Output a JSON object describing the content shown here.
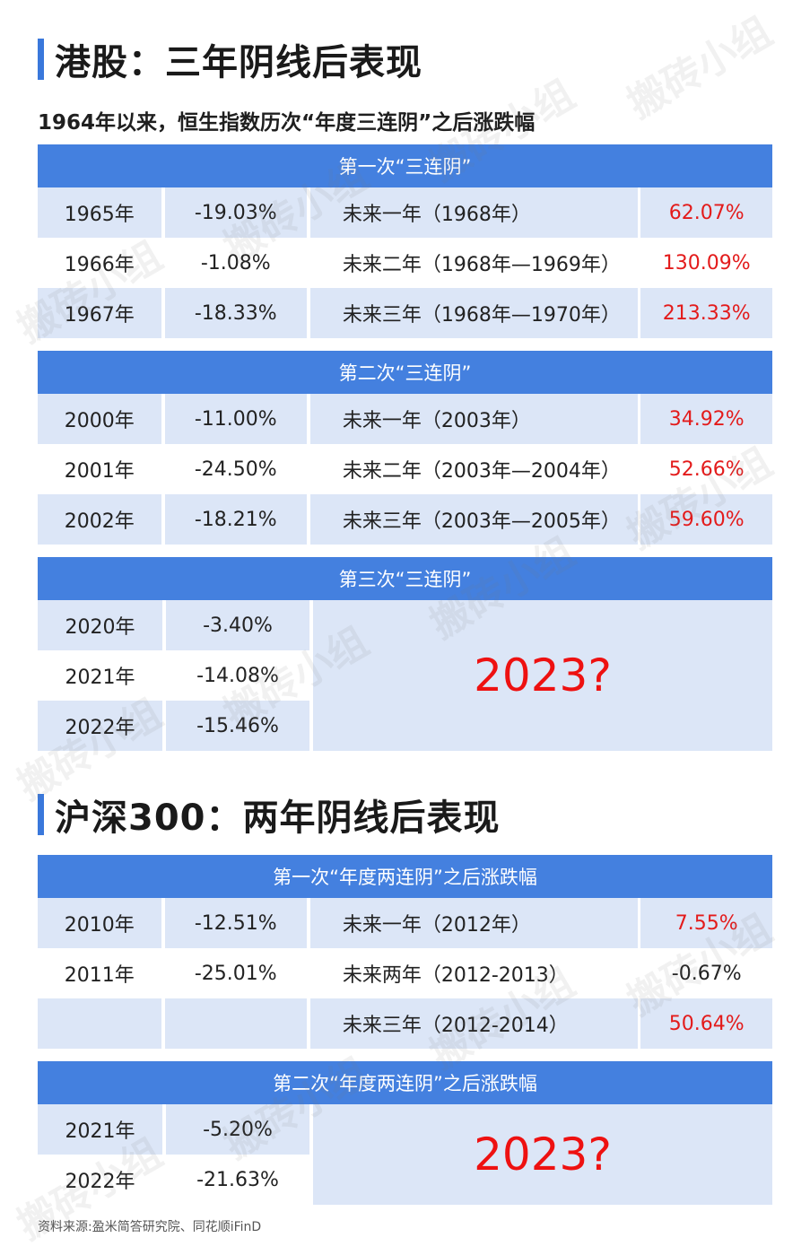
{
  "hk_title": "港股：三年阴线后表现",
  "hk_subtitle": "1964年以来，恒生指数历次“年度三连阴”之后涨跌幅",
  "hk_blocks": [
    {
      "header": "第一次“三连阴”",
      "rows": [
        {
          "year": "1965年",
          "change": "-19.03%",
          "period": "未来一年（1968年）",
          "result": "62.07%"
        },
        {
          "year": "1966年",
          "change": "-1.08%",
          "period": "未来二年（1968年—1969年）",
          "result": "130.09%"
        },
        {
          "year": "1967年",
          "change": "-18.33%",
          "period": "未来三年（1968年—1970年）",
          "result": "213.33%"
        }
      ]
    },
    {
      "header": "第二次“三连阴”",
      "rows": [
        {
          "year": "2000年",
          "change": "-11.00%",
          "period": "未来一年（2003年）",
          "result": "34.92%"
        },
        {
          "year": "2001年",
          "change": "-24.50%",
          "period": "未来二年（2003年—2004年）",
          "result": "52.66%"
        },
        {
          "year": "2002年",
          "change": "-18.21%",
          "period": "未来三年（2003年—2005年）",
          "result": "59.60%"
        }
      ]
    },
    {
      "header": "第三次“三连阴”",
      "rows": [
        {
          "year": "2020年",
          "change": "-3.40%"
        },
        {
          "year": "2021年",
          "change": "-14.08%"
        },
        {
          "year": "2022年",
          "change": "-15.46%"
        }
      ],
      "question": "2023?"
    }
  ],
  "cn_title": "沪深300：两年阴线后表现",
  "cn_blocks": [
    {
      "header": "第一次“年度两连阴”之后涨跌幅",
      "rows": [
        {
          "year": "2010年",
          "change": "-12.51%",
          "period": "未来一年（2012年）",
          "result": "7.55%"
        },
        {
          "year": "2011年",
          "change": "-25.01%",
          "period": "未来两年（2012-2013）",
          "result": "-0.67%"
        },
        {
          "year": "",
          "change": "",
          "period": "未来三年（2012-2014）",
          "result": "50.64%"
        }
      ]
    },
    {
      "header": "第二次“年度两连阴”之后涨跌幅",
      "rows": [
        {
          "year": "2021年",
          "change": "-5.20%"
        },
        {
          "year": "2022年",
          "change": "-21.63%"
        }
      ],
      "question": "2023?"
    }
  ],
  "watermark": "搬砖小组",
  "footer": "资料来源:盈米简答研究院、同花顺iFinD",
  "colors": {
    "accent": "#4480df",
    "row_alt": "#dce6f7",
    "positive": "#e31b1b"
  }
}
